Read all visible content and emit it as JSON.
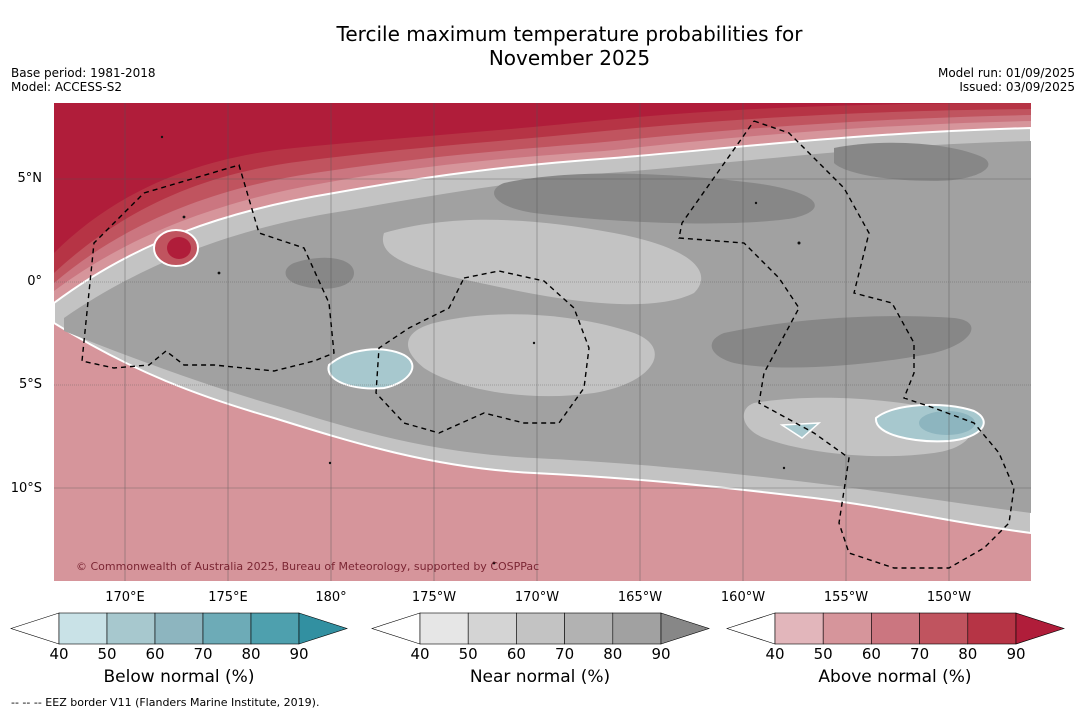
{
  "title_line1": "Tercile maximum temperature probabilities for",
  "title_line2": "November 2025",
  "meta_left": [
    "Base period: 1981-2018",
    "Model: ACCESS-S2"
  ],
  "meta_right": [
    "Model run: 01/09/2025",
    "Issued: 03/09/2025"
  ],
  "copyright": "© Commonwealth of Australia 2025, Bureau of Meteorology, supported by COSPPac",
  "lat_labels": [
    "5°N",
    "0°",
    "5°S",
    "10°S"
  ],
  "lon_labels": [
    "170°E",
    "175°E",
    "180°",
    "175°W",
    "170°W",
    "165°W",
    "160°W",
    "155°W",
    "150°W"
  ],
  "colorbars": [
    {
      "title": "Below normal (%)",
      "ticks": [
        "40",
        "50",
        "60",
        "70",
        "80",
        "90"
      ],
      "colors": [
        "#c9e2e7",
        "#a7c8ce",
        "#8db5bf",
        "#6dabb7",
        "#4ea0ae",
        "#3290a1"
      ]
    },
    {
      "title": "Near normal (%)",
      "ticks": [
        "40",
        "50",
        "60",
        "70",
        "80",
        "90"
      ],
      "colors": [
        "#e6e6e6",
        "#d4d4d4",
        "#c3c3c3",
        "#b2b2b2",
        "#a1a1a1",
        "#878787"
      ]
    },
    {
      "title": "Above normal (%)",
      "ticks": [
        "40",
        "50",
        "60",
        "70",
        "80",
        "90"
      ],
      "colors": [
        "#e2b6bb",
        "#d6959b",
        "#cb7680",
        "#c0545f",
        "#b63445",
        "#b01d3a"
      ]
    }
  ],
  "footnote": "--  --  -- EEZ border V11 (Flanders Marine Institute, 2019).",
  "colors": {
    "deep_red": "#b01d3a",
    "mid_gray": "#a1a1a1",
    "light_gray": "#c3c3c3",
    "dark_gray": "#878787",
    "blue": "#a7c8ce"
  }
}
